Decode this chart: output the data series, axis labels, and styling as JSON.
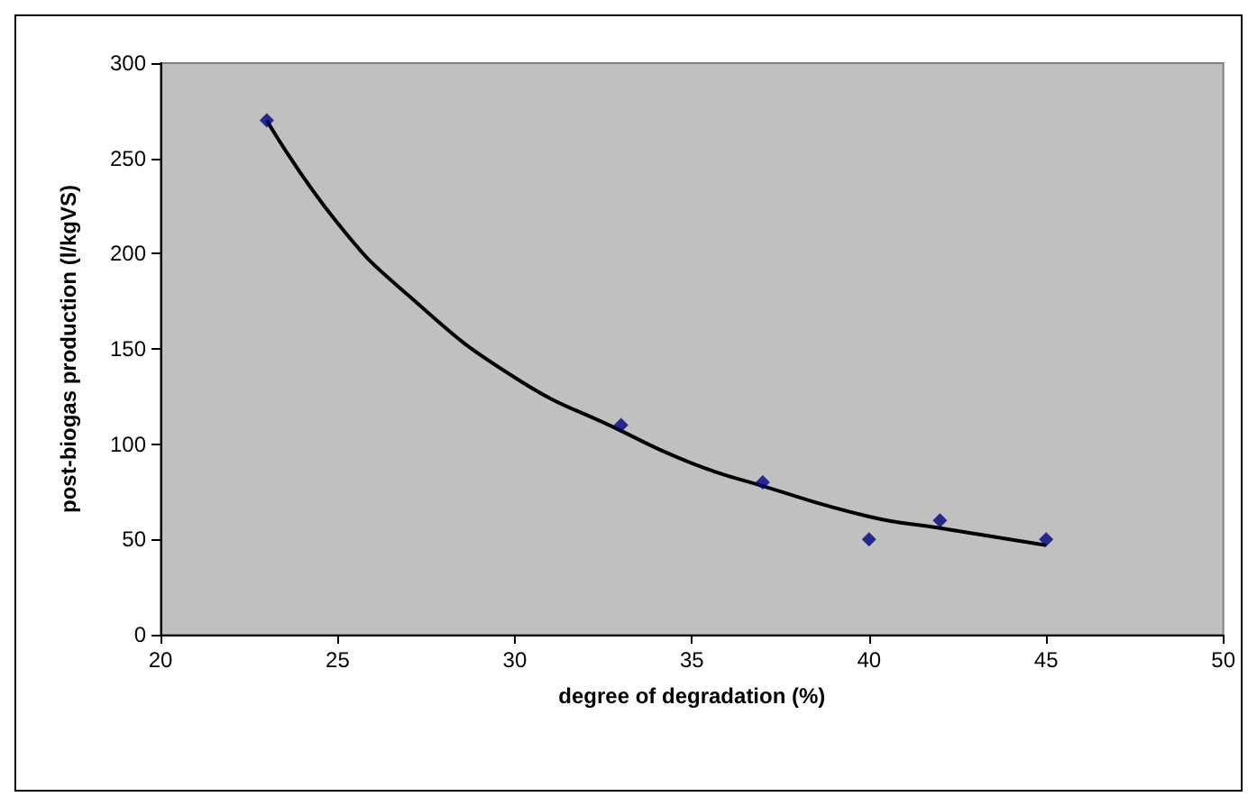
{
  "chart_data": {
    "type": "scatter",
    "xlabel": "degree of degradation (%)",
    "ylabel": "post-biogas production (l/kgVS)",
    "xlim": [
      20,
      50
    ],
    "xticks": [
      20,
      25,
      30,
      35,
      40,
      45,
      50
    ],
    "ylim": [
      0,
      300
    ],
    "yticks": [
      0,
      50,
      100,
      150,
      200,
      250,
      300
    ],
    "series": [
      {
        "color": "#000080",
        "marker": "diamond",
        "x": [
          23,
          33,
          37,
          40,
          42,
          45
        ],
        "values": [
          270,
          110,
          80,
          50,
          60,
          50
        ]
      },
      {
        "type": "line",
        "color": "#000000",
        "marker": "none",
        "line_style": "solid",
        "x": [
          23,
          25,
          27,
          30,
          33,
          35,
          37,
          40,
          42,
          45
        ],
        "values": [
          270,
          216,
          178,
          135,
          107,
          90,
          78,
          62,
          56,
          47
        ]
      }
    ]
  }
}
